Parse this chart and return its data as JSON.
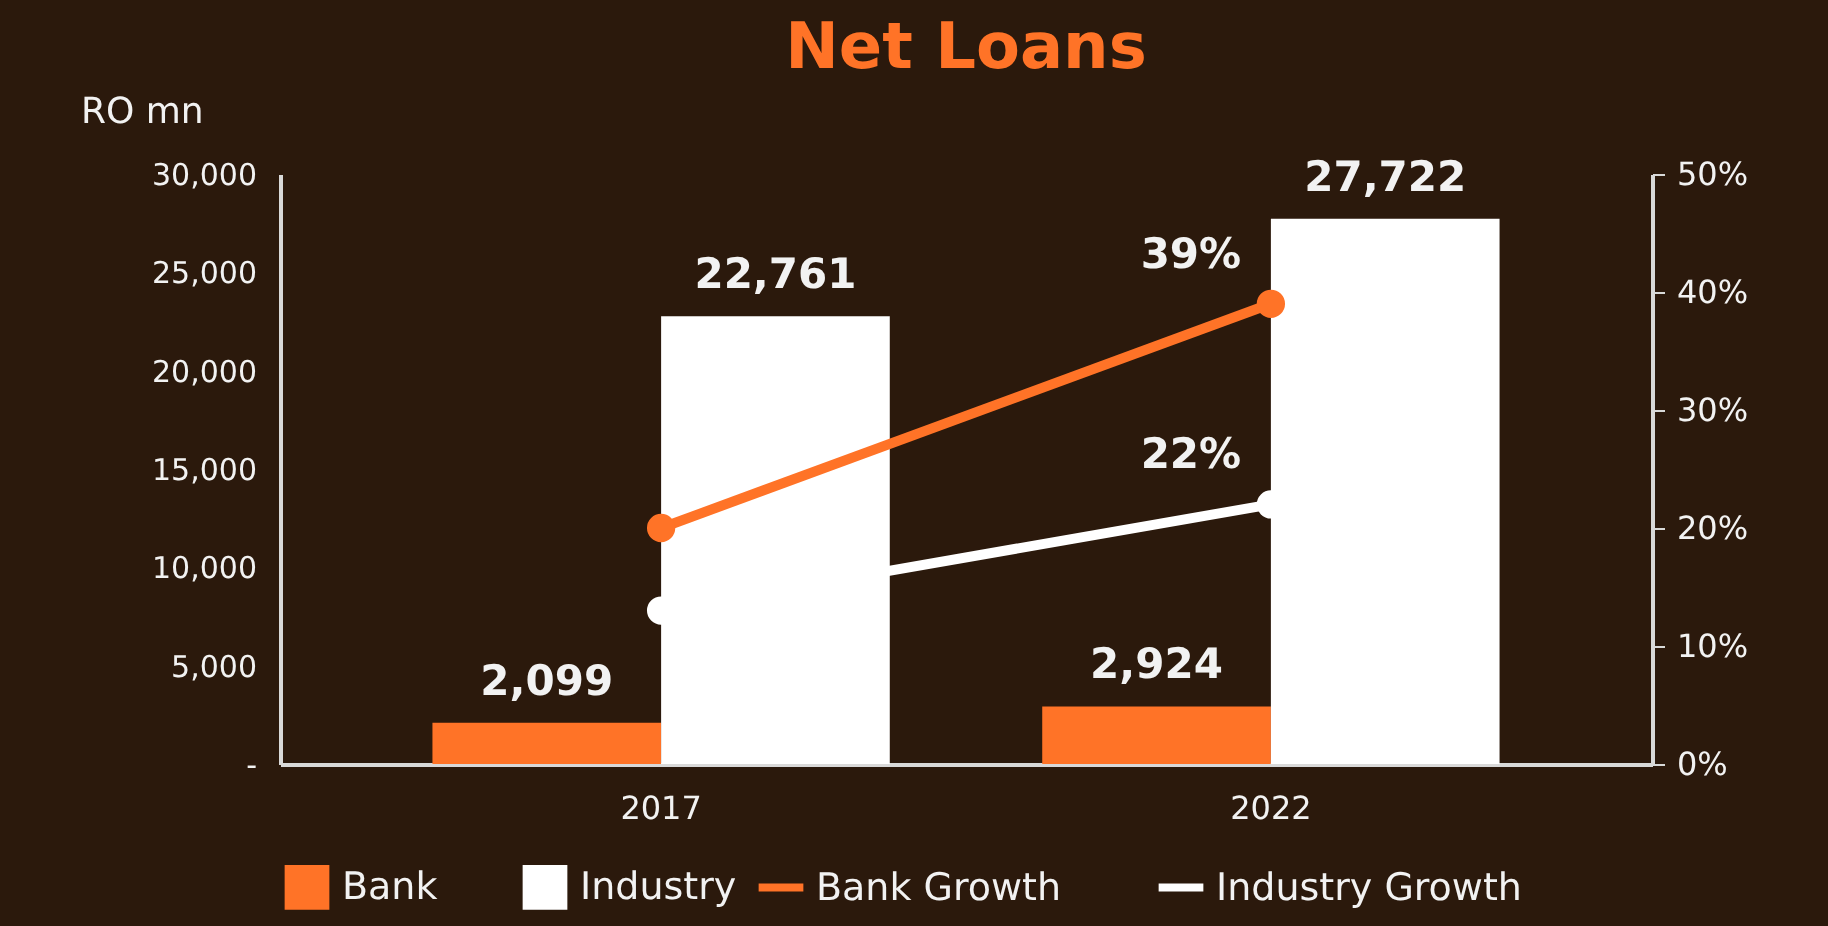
{
  "chart_data": {
    "type": "bar",
    "title": "Net Loans",
    "ylabel": "RO mn",
    "categories": [
      "2017",
      "2022"
    ],
    "series": [
      {
        "name": "Bank",
        "color": "#ff7327",
        "values": [
          2099,
          2924
        ],
        "value_labels": [
          "2,099",
          "2,924"
        ]
      },
      {
        "name": "Industry",
        "color": "#ffffff",
        "values": [
          22761,
          27722
        ],
        "value_labels": [
          "22,761",
          "27,722"
        ]
      },
      {
        "name": "Bank Growth",
        "type": "line",
        "axis": "y2",
        "marker": "circle",
        "color": "#ff7327",
        "values": [
          20,
          39
        ],
        "value_labels": [
          null,
          "39%"
        ]
      },
      {
        "name": "Industry Growth",
        "type": "line",
        "axis": "y2",
        "marker": "circle",
        "color": "#ffffff",
        "values": [
          13,
          22
        ],
        "value_labels": [
          null,
          "22%"
        ]
      }
    ],
    "ylim": [
      0,
      30000
    ],
    "yticks": [
      {
        "value": 0,
        "label": "-"
      },
      {
        "value": 5000,
        "label": "5,000"
      },
      {
        "value": 10000,
        "label": "10,000"
      },
      {
        "value": 15000,
        "label": "15,000"
      },
      {
        "value": 20000,
        "label": "20,000"
      },
      {
        "value": 25000,
        "label": "25,000"
      },
      {
        "value": 30000,
        "label": "30,000"
      }
    ],
    "y2lim": [
      0,
      50
    ],
    "y2ticks": [
      {
        "value": 0,
        "label": "0%"
      },
      {
        "value": 10,
        "label": "10%"
      },
      {
        "value": 20,
        "label": "20%"
      },
      {
        "value": 30,
        "label": "30%"
      },
      {
        "value": 40,
        "label": "40%"
      },
      {
        "value": 50,
        "label": "50%"
      }
    ],
    "legend": "bottom",
    "grid": false
  }
}
